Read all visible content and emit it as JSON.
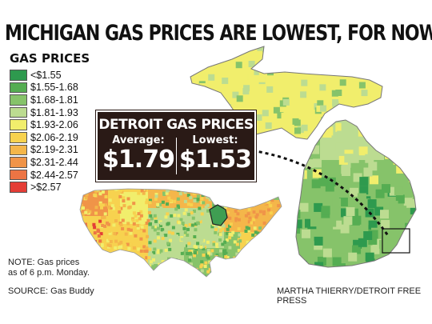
{
  "headline": "MICHIGAN GAS PRICES ARE LOWEST, FOR NOW",
  "legend": {
    "title": "GAS PRICES",
    "items": [
      {
        "label": "<$1.55",
        "color": "#2e9a4e"
      },
      {
        "label": "$1.55-1.68",
        "color": "#55ad52"
      },
      {
        "label": "$1.68-1.81",
        "color": "#86c36a"
      },
      {
        "label": "$1.81-1.93",
        "color": "#bcdc91"
      },
      {
        "label": "$1.93-2.06",
        "color": "#f1ee6c"
      },
      {
        "label": "$2.06-2.19",
        "color": "#f7d24f"
      },
      {
        "label": "$2.19-2.31",
        "color": "#f4b64a"
      },
      {
        "label": "$2.31-2.44",
        "color": "#f09448"
      },
      {
        "label": "$2.44-2.57",
        "color": "#ec7444"
      },
      {
        "label": ">$2.57",
        "color": "#e43d36"
      }
    ]
  },
  "detroit": {
    "title": "DETROIT GAS PRICES",
    "average_label": "Average:",
    "average_value": "$1.79",
    "lowest_label": "Lowest:",
    "lowest_value": "$1.53"
  },
  "note": "NOTE: Gas prices as of 6 p.m. Monday.",
  "note_line1": "NOTE: Gas prices",
  "note_line2": "as of 6 p.m. Monday.",
  "source": "SOURCE: Gas Buddy",
  "credit": "MARTHA THIERRY/DETROIT FREE PRESS"
}
